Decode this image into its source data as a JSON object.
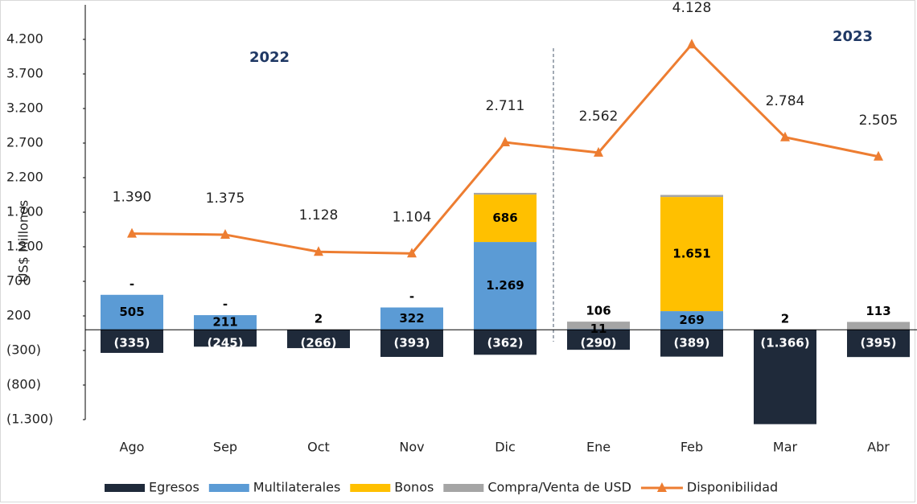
{
  "chart_data": {
    "type": "stacked_bar_line",
    "y_label": "US$ Millones",
    "annotations": [
      "2022",
      "2023"
    ],
    "categories": [
      "Ago",
      "Sep",
      "Oct",
      "Nov",
      "Dic",
      "Ene",
      "Feb",
      "Mar",
      "Abr"
    ],
    "ylim": [
      -1300,
      4700
    ],
    "yticks": [
      {
        "value": 4200,
        "label": "4.200"
      },
      {
        "value": 3700,
        "label": "3.700"
      },
      {
        "value": 3200,
        "label": "3.200"
      },
      {
        "value": 2700,
        "label": "2.700"
      },
      {
        "value": 2200,
        "label": "2.200"
      },
      {
        "value": 1700,
        "label": "1.700"
      },
      {
        "value": 1200,
        "label": "1.200"
      },
      700,
      200,
      {
        "value": -300,
        "label": "(300)"
      },
      {
        "value": -800,
        "label": "(800)"
      },
      {
        "value": -1300,
        "label": "(1.300)"
      }
    ],
    "series": [
      {
        "name": "Egresos",
        "kind": "bar",
        "color": "#1f2a3a",
        "values": [
          -335,
          -245,
          -266,
          -393,
          -362,
          -290,
          -389,
          -1366,
          -395
        ],
        "value_labels": [
          "(335)",
          "(245)",
          "(266)",
          "(393)",
          "(362)",
          "(290)",
          "(389)",
          "(1.366)",
          "(395)"
        ]
      },
      {
        "name": "Multilaterales",
        "kind": "bar",
        "color": "#5b9bd5",
        "values": [
          505,
          211,
          null,
          322,
          1269,
          11,
          269,
          null,
          null
        ],
        "value_labels": [
          "505",
          "211",
          null,
          "322",
          "1.269",
          "11",
          "269",
          null,
          null
        ]
      },
      {
        "name": "Bonos",
        "kind": "bar",
        "color": "#ffc000",
        "values": [
          null,
          null,
          null,
          null,
          686,
          null,
          1651,
          null,
          null
        ],
        "value_labels": [
          null,
          null,
          null,
          null,
          "686",
          null,
          "1.651",
          null,
          null
        ]
      },
      {
        "name": "Compra/Venta de USD",
        "kind": "bar",
        "color": "#a5a5a5",
        "values": [
          0,
          0,
          2,
          0,
          25,
          106,
          30,
          2,
          113
        ],
        "value_labels": [
          "-",
          "-",
          "2",
          "-",
          null,
          "106",
          null,
          "2",
          "113"
        ]
      },
      {
        "name": "Disponibilidad",
        "kind": "line",
        "color": "#ed7d31",
        "values": [
          1390,
          1375,
          1128,
          1104,
          2711,
          2562,
          4128,
          2784,
          2505
        ],
        "value_labels": [
          "1.390",
          "1.375",
          "1.128",
          "1.104",
          "2.711",
          "2.562",
          "4.128",
          "2.784",
          "2.505"
        ]
      }
    ]
  }
}
